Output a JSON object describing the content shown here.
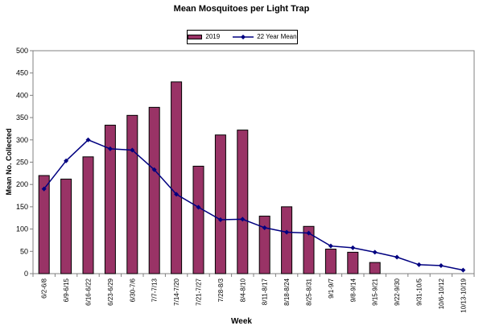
{
  "colors": {
    "bar_fill": "#993366",
    "bar_border": "#000000",
    "line": "#000080",
    "axis": "#808080",
    "plot_border": "#808080",
    "tick_label": "#000000",
    "background": "#ffffff"
  },
  "chart_data": {
    "type": "bar",
    "title": "Mean Mosquitoes per Light Trap",
    "xlabel": "Week",
    "ylabel": "Mean No. Collected",
    "ylim": [
      0,
      500
    ],
    "ytick_step": 50,
    "grid": false,
    "legend_position": "top-center",
    "categories": [
      "6/2-6/8",
      "6/9-6/15",
      "6/16-6/22",
      "6/23-6/29",
      "6/30-7/6",
      "7/7-7/13",
      "7/14-7/20",
      "7/21-7/27",
      "7/28-8/3",
      "8/4-8/10",
      "8/11-8/17",
      "8/18-8/24",
      "8/25-8/31",
      "9/1-9/7",
      "9/8-9/14",
      "9/15-9/21",
      "9/22-9/30",
      "9/31-10/5",
      "10/6-10/12",
      "10/13-10/19"
    ],
    "series": [
      {
        "name": "2019",
        "type": "bar",
        "color": "#993366",
        "values": [
          220,
          212,
          262,
          333,
          355,
          373,
          430,
          241,
          311,
          322,
          129,
          150,
          106,
          55,
          48,
          25,
          0,
          0,
          0,
          0
        ]
      },
      {
        "name": "22 Year Mean",
        "type": "line",
        "marker": "diamond",
        "color": "#000080",
        "values": [
          190,
          253,
          300,
          280,
          277,
          233,
          178,
          149,
          121,
          122,
          103,
          93,
          91,
          62,
          58,
          48,
          37,
          20,
          18,
          8
        ]
      }
    ]
  }
}
